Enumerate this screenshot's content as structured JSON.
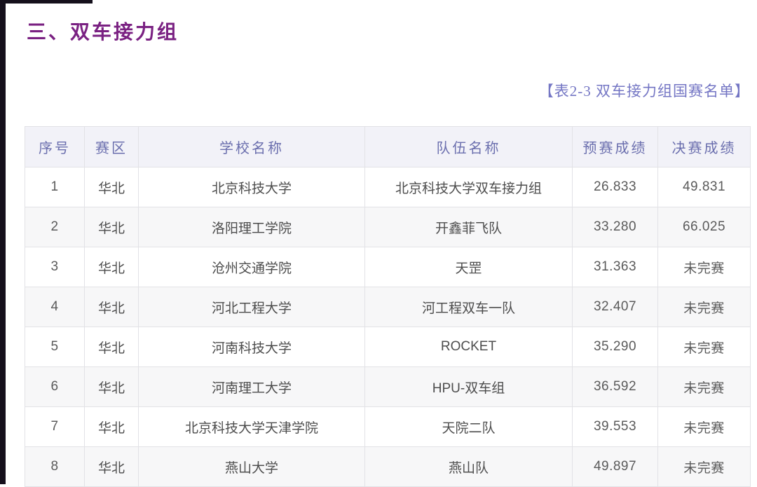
{
  "page": {
    "title": "三、双车接力组",
    "caption": "【表2-3 双车接力组国赛名单】"
  },
  "colors": {
    "title_color": "#7a2182",
    "caption_color": "#7476c4",
    "header_text": "#6b6fae",
    "header_bg": "#f2f2f8",
    "row_alt_bg": "#f7f7f8",
    "body_text": "#4d4d4d",
    "border": "#e2e2e6"
  },
  "table": {
    "headers": [
      "序号",
      "赛区",
      "学校名称",
      "队伍名称",
      "预赛成绩",
      "决赛成绩"
    ],
    "rows": [
      [
        "1",
        "华北",
        "北京科技大学",
        "北京科技大学双车接力组",
        "26.833",
        "49.831"
      ],
      [
        "2",
        "华北",
        "洛阳理工学院",
        "开鑫菲飞队",
        "33.280",
        "66.025"
      ],
      [
        "3",
        "华北",
        "沧州交通学院",
        "天罡",
        "31.363",
        "未完赛"
      ],
      [
        "4",
        "华北",
        "河北工程大学",
        "河工程双车一队",
        "32.407",
        "未完赛"
      ],
      [
        "5",
        "华北",
        "河南科技大学",
        "ROCKET",
        "35.290",
        "未完赛"
      ],
      [
        "6",
        "华北",
        "河南理工大学",
        "HPU-双车组",
        "36.592",
        "未完赛"
      ],
      [
        "7",
        "华北",
        "北京科技大学天津学院",
        "天院二队",
        "39.553",
        "未完赛"
      ],
      [
        "8",
        "华北",
        "燕山大学",
        "燕山队",
        "49.897",
        "未完赛"
      ]
    ]
  }
}
